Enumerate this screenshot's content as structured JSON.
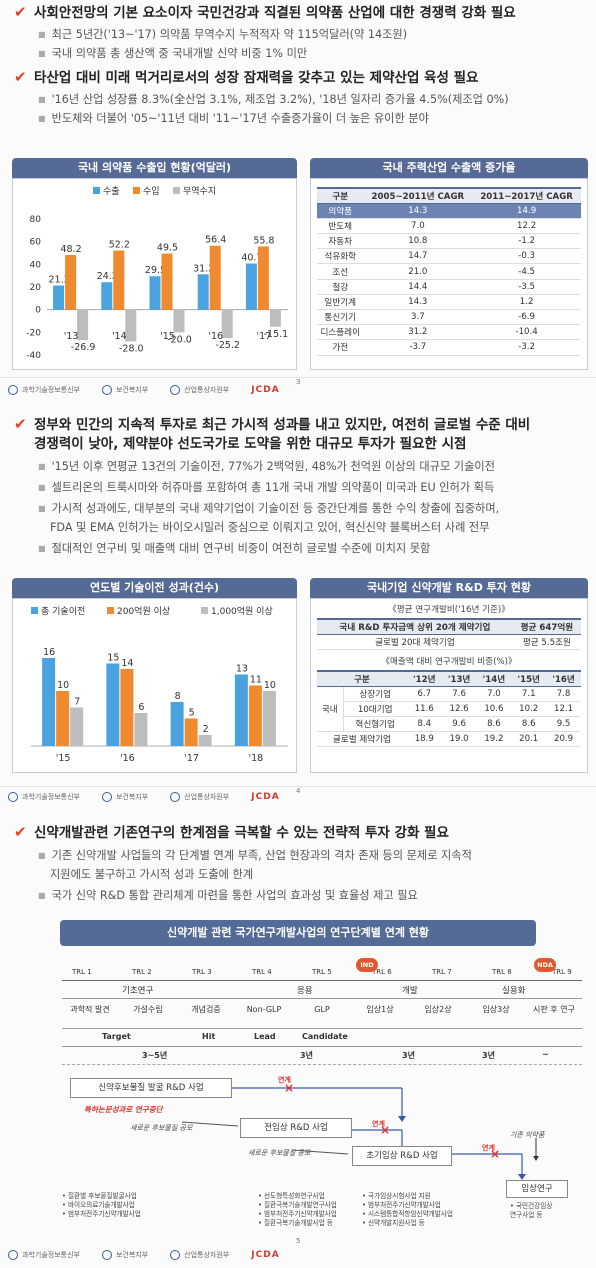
{
  "sec1": {
    "h1": "사회안전망의 기본 요소이자 국민건강과 직결된 의약품 산업에 대한 경쟁력 강화 필요",
    "b1": "최근 5년간('13~'17) 의약품 무역수지 누적적자 약 115억달러(약 14조원)",
    "b2": "국내 의약품 총 생산액 중 국내개발 신약 비중 1% 미만",
    "h2": "타산업 대비 미래 먹거리로서의 성장 잠재력을 갖추고 있는 제약산업 육성 필요",
    "b3": "'16년 산업 성장률 8.3%(全산업 3.1%, 제조업 3.2%), '18년 일자리 증가율 4.5%(제조업 0%)",
    "b4": "반도체와 더불어 '05~'11년 대비 '11~'17년 수출증가율이 더 높은 유이한 분야"
  },
  "chart_data": [
    {
      "type": "bar",
      "title": "국내 의약품 수출입 현황(억달러)",
      "categories": [
        "'13",
        "'14",
        "'15",
        "'16",
        "'17"
      ],
      "series": [
        {
          "name": "수출",
          "values": [
            21.3,
            24.2,
            29.5,
            31.2,
            40.7
          ]
        },
        {
          "name": "수입",
          "values": [
            48.2,
            52.2,
            49.5,
            56.4,
            55.8
          ]
        },
        {
          "name": "무역수지",
          "values": [
            -26.9,
            -28.0,
            -20.0,
            -25.2,
            -15.1
          ]
        }
      ],
      "yticks": [
        "80",
        "60",
        "40",
        "20",
        "0",
        "-20",
        "-40"
      ],
      "ylim": [
        -40,
        80
      ],
      "labels": [
        [
          "21.3",
          "48.2",
          "-26.9"
        ],
        [
          "24.2",
          "52.2",
          "-28.0"
        ],
        [
          "29.5",
          "49.5",
          "-20.0"
        ],
        [
          "31.2",
          "56.4",
          "-25.2"
        ],
        [
          "40.7",
          "55.8",
          "-15.1"
        ]
      ],
      "colors": [
        "#4aa3df",
        "#f08a2e",
        "#bdbdbd"
      ],
      "legend": "top"
    },
    {
      "type": "bar",
      "title": "연도별 기술이전 성과(건수)",
      "categories": [
        "'15",
        "'16",
        "'17",
        "'18"
      ],
      "series": [
        {
          "name": "총 기술이전",
          "values": [
            16,
            15,
            8,
            13
          ]
        },
        {
          "name": "200억원 이상",
          "values": [
            10,
            14,
            5,
            11
          ]
        },
        {
          "name": "1,000억원 이상",
          "values": [
            7,
            6,
            2,
            10
          ]
        }
      ],
      "ylim": [
        0,
        18
      ],
      "labels": [
        [
          "16",
          "10",
          "7"
        ],
        [
          "15",
          "14",
          "6"
        ],
        [
          "8",
          "5",
          "2"
        ],
        [
          "13",
          "11",
          "10"
        ]
      ],
      "colors": [
        "#4aa3df",
        "#f08a2e",
        "#bdbdbd"
      ],
      "legend": "top"
    }
  ],
  "table1": {
    "title": "국내 주력산업 수출액 증가율",
    "headers": [
      "구분",
      "2005~2011년 CAGR",
      "2011~2017년 CAGR"
    ],
    "rows": [
      [
        "의약품",
        "14.3",
        "14.9"
      ],
      [
        "반도체",
        "7.0",
        "12.2"
      ],
      [
        "자동차",
        "10.8",
        "-1.2"
      ],
      [
        "석유화학",
        "14.7",
        "-0.3"
      ],
      [
        "조선",
        "21.0",
        "-4.5"
      ],
      [
        "철강",
        "14.4",
        "-3.5"
      ],
      [
        "일반기계",
        "14.3",
        "1.2"
      ],
      [
        "통신기기",
        "3.7",
        "-6.9"
      ],
      [
        "디스플레이",
        "31.2",
        "-10.4"
      ],
      [
        "가전",
        "-3.7",
        "-3.2"
      ]
    ]
  },
  "footer": {
    "org1": "과학기술정보통신부",
    "org2": "보건복지부",
    "org3": "산업통상자원부",
    "brand": "JCDA",
    "p3": "3",
    "p4": "4",
    "p5": "5"
  },
  "sec2": {
    "h1a": "정부와 민간의 지속적 투자로 최근 가시적 성과를 내고 있지만, 여전히 글로벌 수준 대비",
    "h1b": "경쟁력이 낮아, 제약분야 선도국가로 도약을 위한 대규모 투자가 필요한 시점",
    "b1": "'15년 이후 연평균 13건의 기술이전, 77%가 2백억원, 48%가 천억원 이상의 대규모 기술이전",
    "b2": "셀트리온의 트룩시마와 허쥬마를 포함하여 총 11개 국내 개발 의약품이 미국과 EU 인허가 획득",
    "b3a": "가시적 성과에도, 대부분의 국내 제약기업이 기술이전 등 중간단계를 통한 수익 창출에 집중하며,",
    "b3b": "FDA 및 EMA 인허가는 바이오시밀러 중심으로 이뤄지고 있어, 혁신신약 블록버스터 사례 전무",
    "b4": "절대적인 연구비 및 매출액 대비 연구비 비중이 여전히 글로벌 수준에 미치지 못함"
  },
  "rnd": {
    "title": "국내기업 신약개발 R&D 투자 현황",
    "sub1": "《평균 연구개발비('16년 기준)》",
    "t1": [
      [
        "국내 R&D 투자금액 상위 20개 제약기업",
        "평균 647억원"
      ],
      [
        "글로벌 20대 제약기업",
        "평균 5.5조원"
      ]
    ],
    "sub2": "《매출액 대비 연구개발비 비중(%)》",
    "headers": [
      "구분",
      "",
      "'12년",
      "'13년",
      "'14년",
      "'15년",
      "'16년"
    ],
    "group": "국내",
    "rows": [
      [
        "상장기업",
        "6.7",
        "7.6",
        "7.0",
        "7.1",
        "7.8"
      ],
      [
        "10대기업",
        "11.6",
        "12.6",
        "10.6",
        "10.2",
        "12.1"
      ],
      [
        "혁신형기업",
        "8.4",
        "9.6",
        "8.6",
        "8.6",
        "9.5"
      ]
    ],
    "global_row": [
      "글로벌 제약기업",
      "18.9",
      "19.0",
      "19.2",
      "20.1",
      "20.9"
    ]
  },
  "sec3": {
    "h1": "신약개발관련 기존연구의 한계점을 극복할 수 있는 전략적 투자 강화 필요",
    "b1a": "기존 신약개발 사업들의 각 단계별 연계 부족, 산업 현장과의 격차 존재 등의 문제로 지속적",
    "b1b": "지원에도 불구하고 가시적 성과 도출에 한계",
    "b2": "국가 신약 R&D 통합 관리체계 마련을 통한 사업의 효과성 및 효율성 제고 필요"
  },
  "diagram": {
    "title": "신약개발 관련 국가연구개발사업의 연구단계별 연계 현황",
    "trl": [
      "TRL 1",
      "TRL 2",
      "TRL 3",
      "TRL 4",
      "TRL 5",
      "TRL 6",
      "TRL 7",
      "TRL 8",
      "TRL 9"
    ],
    "ind": "IND",
    "nda": "NDA",
    "phases": [
      "기초연구",
      "응용",
      "개발",
      "실용화"
    ],
    "stages": [
      "과학적 발견",
      "가설수립",
      "개념검증",
      "Non-GLP",
      "GLP",
      "임상1상",
      "임상2상",
      "임상3상",
      "시판 후 연구"
    ],
    "milestones": [
      "Target",
      "Hit",
      "Lead",
      "Candidate"
    ],
    "durations": [
      "3~5년",
      "3년",
      "3년",
      "3년",
      "~"
    ],
    "box1": "신약후보물질 발굴 R&D 사업",
    "box2": "전임상 R&D 사업",
    "box3": "초기임상 R&D 사업",
    "box4": "임상연구",
    "link": "연계",
    "red_note": "특허논문성과로 연구중단",
    "arrow1": "새로운 후보물질 공모",
    "arrow2": "새로운 후보물질 공모",
    "arrow3": "기존 의약품",
    "notes1": [
      "• 질환별 후보물질발굴사업",
      "• 바이오의료기술개발사업",
      "• 범부처전주기신약개발사업"
    ],
    "notes2": [
      "• 선도형특성화연구사업",
      "• 질환극복기술개발연구사업",
      "• 범부처전주기신약개발사업",
      "• 질환극복기술개발사업 등"
    ],
    "notes3": [
      "• 국가임상시험사업 지원",
      "• 범부처전주기신약개발사업",
      "• 시스템통합적항암신약개발사업",
      "• 신약개발지원사업 등"
    ],
    "notes4": [
      "• 국민건강임상",
      "  연구사업 등"
    ]
  }
}
